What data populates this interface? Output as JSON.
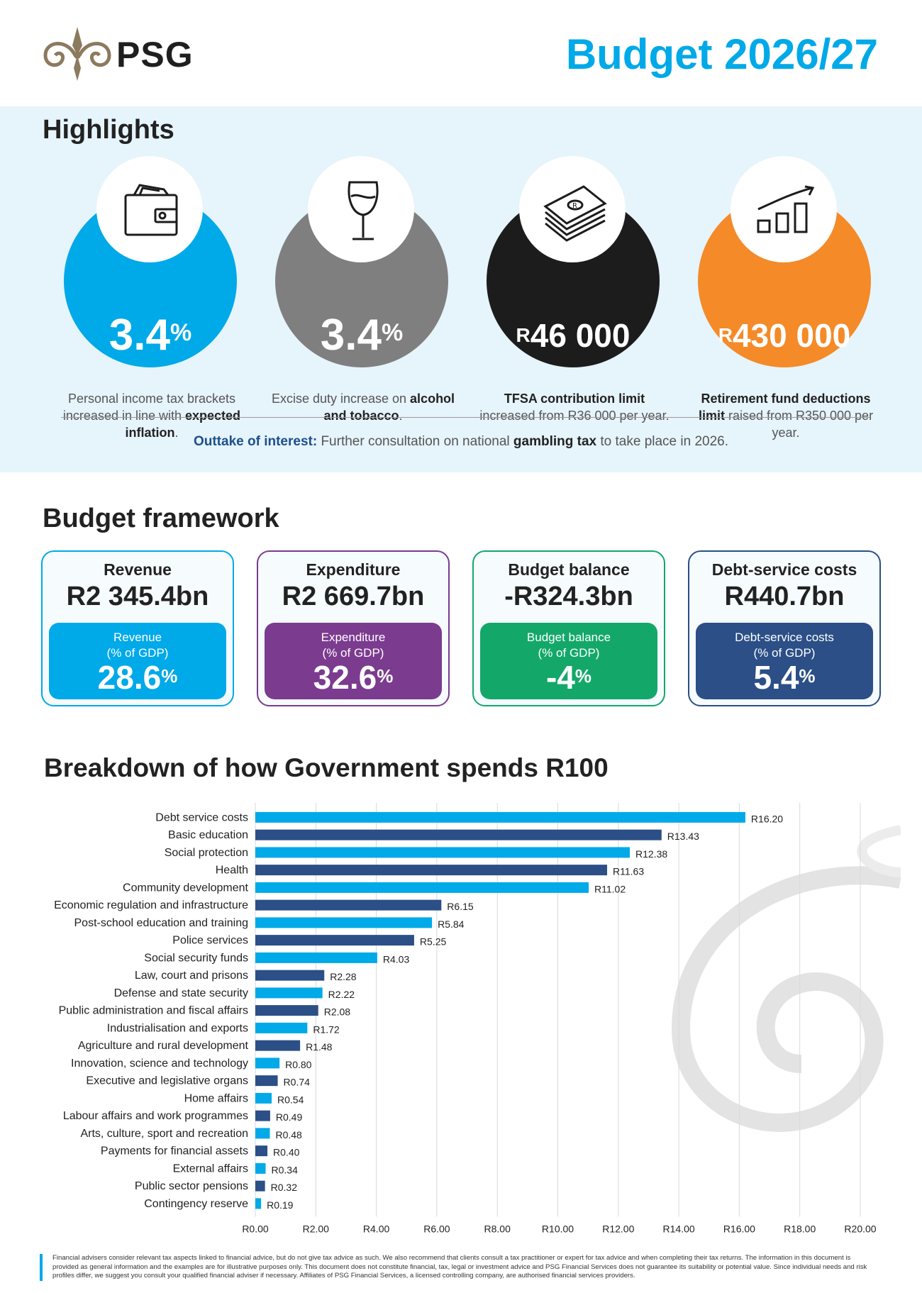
{
  "header": {
    "logo_text": "PSG",
    "title": "Budget 2026/27"
  },
  "highlights": {
    "title": "Highlights",
    "items": [
      {
        "icon": "wallet-icon",
        "color": "#00a9e8",
        "prefix": "",
        "value": "3.4",
        "suffix": "%",
        "desc_parts": [
          {
            "text": "Personal income tax brackets increased in line with ",
            "bold": false
          },
          {
            "text": "expected inflation",
            "bold": true
          },
          {
            "text": ".",
            "bold": false
          }
        ]
      },
      {
        "icon": "wine-glass-icon",
        "color": "#7f7f7f",
        "prefix": "",
        "value": "3.4",
        "suffix": "%",
        "desc_parts": [
          {
            "text": "Excise duty increase on ",
            "bold": false
          },
          {
            "text": "alcohol and tobacco",
            "bold": true
          },
          {
            "text": ".",
            "bold": false
          }
        ]
      },
      {
        "icon": "money-stack-icon",
        "color": "#1c1c1c",
        "prefix": "R",
        "value": "46 000",
        "suffix": "",
        "desc_parts": [
          {
            "text": "TFSA contribution limit",
            "bold": true
          },
          {
            "text": " increased from R36 000 per year.",
            "bold": false
          }
        ]
      },
      {
        "icon": "growth-chart-icon",
        "color": "#f48a28",
        "prefix": "R",
        "value": "430 000",
        "suffix": "",
        "desc_parts": [
          {
            "text": "Retirement fund deductions limit",
            "bold": true
          },
          {
            "text": " raised from R350 000 per year.",
            "bold": false
          }
        ]
      }
    ],
    "outtake_label": "Outtake of interest:",
    "outtake_pre": " Further consultation on national ",
    "outtake_bold": "gambling tax",
    "outtake_post": " to take place in 2026."
  },
  "framework": {
    "title": "Budget framework",
    "cards": [
      {
        "label": "Revenue",
        "amount": "R2 345.4bn",
        "sub1": "Revenue",
        "sub2": "(% of GDP)",
        "pct": "28.6",
        "pct_suffix": "%",
        "border": "#00a9e8",
        "fill": "#00a9e8"
      },
      {
        "label": "Expenditure",
        "amount": "R2 669.7bn",
        "sub1": "Expenditure",
        "sub2": "(% of GDP)",
        "pct": "32.6",
        "pct_suffix": "%",
        "border": "#7b3b8f",
        "fill": "#7b3b8f"
      },
      {
        "label": "Budget balance",
        "amount": "-R324.3bn",
        "sub1": "Budget balance",
        "sub2": "(% of GDP)",
        "pct": "-4",
        "pct_suffix": "%",
        "border": "#13a86a",
        "fill": "#13a86a"
      },
      {
        "label": "Debt-service costs",
        "amount": "R440.7bn",
        "sub1": "Debt-service costs",
        "sub2": "(% of GDP)",
        "pct": "5.4",
        "pct_suffix": "%",
        "border": "#2b4f86",
        "fill": "#2b4f86"
      }
    ]
  },
  "chart_title": "Breakdown of how Government spends R100",
  "chart_data": {
    "type": "bar",
    "orientation": "horizontal",
    "categories": [
      "Debt service costs",
      "Basic education",
      "Social protection",
      "Health",
      "Community development",
      "Economic regulation and infrastructure",
      "Post-school education and training",
      "Police services",
      "Social security funds",
      "Law, court and prisons",
      "Defense and state security",
      "Public administration and fiscal affairs",
      "Industrialisation and exports",
      "Agriculture and rural development",
      "Innovation, science and technology",
      "Executive and legislative organs",
      "Home affairs",
      "Labour affairs and work programmes",
      "Arts, culture, sport and recreation",
      "Payments for financial assets",
      "External affairs",
      "Public sector pensions",
      "Contingency reserve"
    ],
    "values": [
      16.2,
      13.43,
      12.38,
      11.63,
      11.02,
      6.15,
      5.84,
      5.25,
      4.03,
      2.28,
      2.22,
      2.08,
      1.72,
      1.48,
      0.8,
      0.74,
      0.54,
      0.49,
      0.48,
      0.4,
      0.34,
      0.32,
      0.19
    ],
    "value_labels": [
      "R16.20",
      "R13.43",
      "R12.38",
      "R11.63",
      "R11.02",
      "R6.15",
      "R5.84",
      "R5.25",
      "R4.03",
      "R2.28",
      "R2.22",
      "R2.08",
      "R1.72",
      "R1.48",
      "R0.80",
      "R0.74",
      "R0.54",
      "R0.49",
      "R0.48",
      "R0.40",
      "R0.34",
      "R0.32",
      "R0.19"
    ],
    "xlim": [
      0,
      20
    ],
    "xticks": [
      "R0.00",
      "R2.00",
      "R4.00",
      "R6.00",
      "R8.00",
      "R10.00",
      "R12.00",
      "R14.00",
      "R16.00",
      "R18.00",
      "R20.00"
    ],
    "colors": [
      "#00a9e8",
      "#2b4f86"
    ],
    "grid": "vertical"
  },
  "footer": {
    "text": "Financial advisers consider relevant tax aspects linked to financial advice, but do not give tax advice as such. We also recommend that clients consult a tax practitioner or expert for tax advice and when completing their tax returns. The information in this document is provided as general information and the examples are for illustrative purposes only. This document does not constitute financial, tax, legal or investment advice and PSG Financial Services does not guarantee its suitability or potential value. Since individual needs and risk profiles differ, we suggest you consult your qualified financial adviser if necessary. Affiliates of PSG Financial Services, a licensed controlling company, are authorised financial services providers."
  }
}
